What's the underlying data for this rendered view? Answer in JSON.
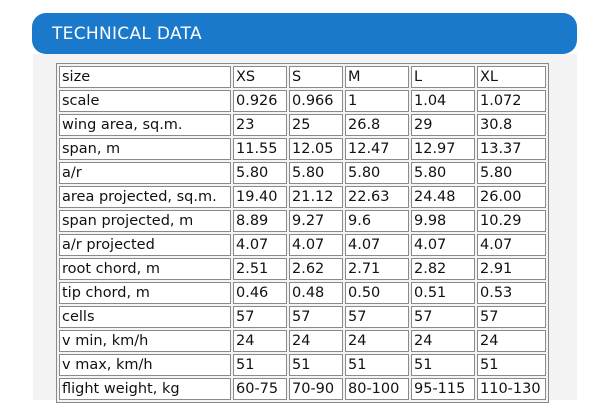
{
  "header": {
    "title": "TECHNICAL DATA"
  },
  "table": {
    "columns": [
      "size",
      "XS",
      "S",
      "M",
      "L",
      "XL"
    ],
    "rows": [
      [
        "scale",
        "0.926",
        "0.966",
        "1",
        "1.04",
        "1.072"
      ],
      [
        "wing area, sq.m.",
        "23",
        "25",
        "26.8",
        "29",
        "30.8"
      ],
      [
        "span, m",
        "11.55",
        "12.05",
        "12.47",
        "12.97",
        "13.37"
      ],
      [
        "a/r",
        "5.80",
        "5.80",
        "5.80",
        "5.80",
        "5.80"
      ],
      [
        "area projected, sq.m.",
        "19.40",
        "21.12",
        "22.63",
        "24.48",
        "26.00"
      ],
      [
        "span projected, m",
        "8.89",
        "9.27",
        "9.6",
        "9.98",
        "10.29"
      ],
      [
        "a/r projected",
        "4.07",
        "4.07",
        "4.07",
        "4.07",
        "4.07"
      ],
      [
        "root chord, m",
        "2.51",
        "2.62",
        "2.71",
        "2.82",
        "2.91"
      ],
      [
        "tip chord, m",
        "0.46",
        "0.48",
        "0.50",
        "0.51",
        "0.53"
      ],
      [
        "cells",
        "57",
        "57",
        "57",
        "57",
        "57"
      ],
      [
        "v min, km/h",
        "24",
        "24",
        "24",
        "24",
        "24"
      ],
      [
        "v max, km/h",
        "51",
        "51",
        "51",
        "51",
        "51"
      ],
      [
        "flight weight, kg",
        "60-75",
        "70-90",
        "80-100",
        "95-115",
        "110-130"
      ]
    ]
  }
}
